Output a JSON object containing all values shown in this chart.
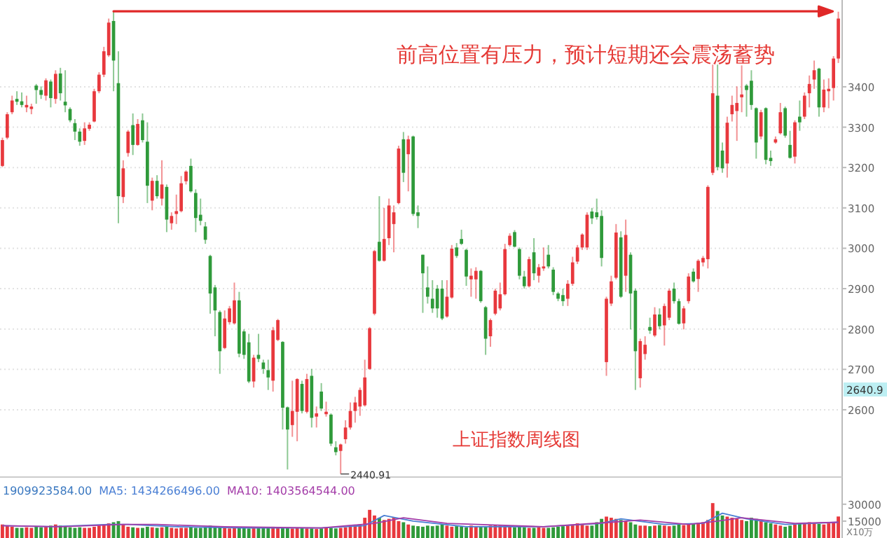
{
  "chart_data": [
    {
      "type": "candlestick",
      "categories": [
        null,
        null,
        null,
        null,
        null,
        null,
        null,
        null,
        null,
        null,
        null,
        null,
        null,
        null,
        null,
        null,
        null,
        null,
        null,
        null,
        null,
        null,
        null,
        null,
        null,
        null,
        null,
        null,
        null,
        null,
        null,
        null,
        null,
        null,
        null,
        null,
        null,
        null,
        null,
        null,
        null,
        null,
        null,
        null,
        null,
        null,
        null,
        null,
        null,
        null,
        null,
        null,
        null,
        null,
        null,
        null,
        null,
        null,
        null,
        null,
        null,
        null,
        null,
        null,
        null,
        null,
        null,
        null,
        null,
        null,
        null,
        null,
        null,
        null,
        null,
        null,
        null,
        null,
        null,
        null,
        null,
        null,
        null,
        null,
        null,
        null,
        null,
        null,
        null,
        null,
        null,
        null,
        null,
        null,
        null,
        null,
        null,
        null,
        null,
        null,
        null,
        null,
        null,
        null,
        null,
        null,
        null,
        null,
        null,
        null,
        null,
        null,
        null,
        null,
        null,
        null,
        null,
        null,
        null,
        null,
        null,
        null,
        null,
        null,
        null,
        null,
        null,
        null,
        null,
        null,
        null,
        null,
        null,
        null,
        null,
        null,
        null,
        null,
        null,
        null,
        null,
        null,
        null,
        null,
        null,
        null,
        null,
        null,
        null,
        null,
        null,
        null,
        null,
        null,
        null,
        null,
        null,
        null,
        null,
        null,
        null,
        null,
        null,
        null,
        null,
        null,
        null,
        null,
        null,
        null,
        null,
        null,
        null,
        null
      ],
      "ohlc": [
        [
          3204,
          3274,
          3201,
          3268
        ],
        [
          3274,
          3337,
          3270,
          3332
        ],
        [
          3337,
          3378,
          3332,
          3366
        ],
        [
          3370,
          3389,
          3355,
          3363
        ],
        [
          3364,
          3386,
          3349,
          3355
        ],
        [
          3349,
          3378,
          3337,
          3355
        ],
        [
          3345,
          3358,
          3332,
          3351
        ],
        [
          3403,
          3407,
          3358,
          3392
        ],
        [
          3392,
          3401,
          3370,
          3380
        ],
        [
          3378,
          3421,
          3366,
          3416
        ],
        [
          3413,
          3418,
          3349,
          3372
        ],
        [
          3370,
          3441,
          3358,
          3432
        ],
        [
          3433,
          3447,
          3366,
          3384
        ],
        [
          3363,
          3441,
          3337,
          3354
        ],
        [
          3345,
          3349,
          3312,
          3317
        ],
        [
          3310,
          3320,
          3268,
          3289
        ],
        [
          3289,
          3297,
          3254,
          3264
        ],
        [
          3266,
          3312,
          3256,
          3297
        ],
        [
          3296,
          3312,
          3291,
          3306
        ],
        [
          3314,
          3395,
          3312,
          3389
        ],
        [
          3389,
          3436,
          3384,
          3430
        ],
        [
          3430,
          3499,
          3424,
          3488
        ],
        [
          3478,
          3569,
          3474,
          3559
        ],
        [
          3563,
          3587,
          3389,
          3465
        ],
        [
          3409,
          3488,
          3062,
          3129
        ],
        [
          3127,
          3218,
          3112,
          3198
        ],
        [
          3236,
          3293,
          3227,
          3289
        ],
        [
          3305,
          3334,
          3231,
          3256
        ],
        [
          3256,
          3320,
          3254,
          3308
        ],
        [
          3317,
          3334,
          3262,
          3268
        ],
        [
          3264,
          3312,
          3112,
          3155
        ],
        [
          3118,
          3175,
          3094,
          3167
        ],
        [
          3167,
          3181,
          3123,
          3129
        ],
        [
          3123,
          3218,
          3106,
          3158
        ],
        [
          3152,
          3158,
          3040,
          3071
        ],
        [
          3062,
          3089,
          3046,
          3080
        ],
        [
          3085,
          3133,
          3060,
          3092
        ],
        [
          3092,
          3179,
          3089,
          3161
        ],
        [
          3166,
          3193,
          3158,
          3190
        ],
        [
          3204,
          3222,
          3138,
          3141
        ],
        [
          3137,
          3146,
          3040,
          3075
        ],
        [
          3083,
          3123,
          3057,
          3068
        ],
        [
          3054,
          3065,
          3011,
          3021
        ],
        [
          2981,
          2984,
          2838,
          2888
        ],
        [
          2903,
          2909,
          2782,
          2846
        ],
        [
          2842,
          2846,
          2689,
          2745
        ],
        [
          2753,
          2846,
          2750,
          2826
        ],
        [
          2817,
          2857,
          2811,
          2851
        ],
        [
          2814,
          2915,
          2811,
          2871
        ],
        [
          2871,
          2892,
          2730,
          2739
        ],
        [
          2794,
          2799,
          2726,
          2736
        ],
        [
          2767,
          2788,
          2666,
          2670
        ],
        [
          2670,
          2736,
          2655,
          2729
        ],
        [
          2736,
          2788,
          2718,
          2726
        ],
        [
          2717,
          2724,
          2689,
          2701
        ],
        [
          2698,
          2724,
          2649,
          2680
        ],
        [
          2672,
          2805,
          2645,
          2797
        ],
        [
          2773,
          2825,
          2770,
          2822
        ],
        [
          2768,
          2770,
          2551,
          2605
        ],
        [
          2606,
          2608,
          2452,
          2551
        ],
        [
          2562,
          2672,
          2533,
          2597
        ],
        [
          2595,
          2678,
          2522,
          2676
        ],
        [
          2664,
          2672,
          2591,
          2597
        ],
        [
          2595,
          2689,
          2591,
          2676
        ],
        [
          2684,
          2701,
          2556,
          2580
        ],
        [
          2583,
          2608,
          2556,
          2591
        ],
        [
          2645,
          2666,
          2597,
          2603
        ],
        [
          2589,
          2620,
          2583,
          2595
        ],
        [
          2588,
          2591,
          2510,
          2516
        ],
        [
          2507,
          2522,
          2487,
          2495
        ],
        [
          2498,
          2516,
          2440.91,
          2514
        ],
        [
          2527,
          2574,
          2516,
          2556
        ],
        [
          2556,
          2618,
          2551,
          2597
        ],
        [
          2597,
          2632,
          2568,
          2618
        ],
        [
          2608,
          2655,
          2585,
          2649
        ],
        [
          2611,
          2724,
          2608,
          2680
        ],
        [
          2701,
          2805,
          2699,
          2802
        ],
        [
          2838,
          2996,
          2834,
          2993
        ],
        [
          3016,
          3129,
          2967,
          2969
        ],
        [
          2969,
          3100,
          2967,
          3023
        ],
        [
          3025,
          3123,
          3008,
          3106
        ],
        [
          3060,
          3106,
          2990,
          3089
        ],
        [
          3112,
          3254,
          3109,
          3247
        ],
        [
          3270,
          3288,
          3164,
          3187
        ],
        [
          3233,
          3279,
          3141,
          3270
        ],
        [
          3277,
          3279,
          3080,
          3085
        ],
        [
          3089,
          3106,
          3050,
          3080
        ],
        [
          2984,
          2984,
          2840,
          2938
        ],
        [
          2903,
          2955,
          2863,
          2880
        ],
        [
          2875,
          2921,
          2840,
          2851
        ],
        [
          2900,
          2909,
          2828,
          2851
        ],
        [
          2900,
          2921,
          2822,
          2826
        ],
        [
          2831,
          2921,
          2828,
          2880
        ],
        [
          2878,
          3008,
          2875,
          2999
        ],
        [
          3002,
          3013,
          2976,
          2981
        ],
        [
          3023,
          3046,
          3008,
          3011
        ],
        [
          2996,
          2999,
          2907,
          2930
        ],
        [
          2923,
          2950,
          2880,
          2932
        ],
        [
          2923,
          2953,
          2875,
          2944
        ],
        [
          2944,
          2946,
          2865,
          2869
        ],
        [
          2854,
          2857,
          2736,
          2776
        ],
        [
          2782,
          2826,
          2756,
          2822
        ],
        [
          2838,
          2900,
          2834,
          2895
        ],
        [
          2851,
          2915,
          2846,
          2886
        ],
        [
          2886,
          3011,
          2883,
          2998
        ],
        [
          3008,
          3037,
          3004,
          3031
        ],
        [
          3040,
          3045,
          3002,
          3004
        ],
        [
          2998,
          3002,
          2923,
          2932
        ],
        [
          2930,
          2944,
          2900,
          2906
        ],
        [
          2906,
          2979,
          2903,
          2973
        ],
        [
          2990,
          3025,
          2921,
          2938
        ],
        [
          2932,
          2961,
          2915,
          2953
        ],
        [
          2950,
          3002,
          2944,
          2955
        ],
        [
          2984,
          3008,
          2950,
          2955
        ],
        [
          2947,
          2953,
          2884,
          2892
        ],
        [
          2888,
          2892,
          2869,
          2875
        ],
        [
          2884,
          2900,
          2857,
          2869
        ],
        [
          2875,
          2921,
          2857,
          2912
        ],
        [
          2912,
          2979,
          2907,
          2965
        ],
        [
          2967,
          3008,
          2961,
          3002
        ],
        [
          3002,
          3037,
          2996,
          3034
        ],
        [
          3002,
          3089,
          2996,
          3083
        ],
        [
          3091,
          3100,
          3060,
          3074
        ],
        [
          3089,
          3123,
          3071,
          3077
        ],
        [
          3080,
          3094,
          2955,
          2976
        ],
        [
          2718,
          2880,
          2684,
          2875
        ],
        [
          2863,
          2932,
          2857,
          2918
        ],
        [
          2927,
          3060,
          2923,
          3039
        ],
        [
          3027,
          3042,
          2877,
          2880
        ],
        [
          2932,
          3071,
          2892,
          3033
        ],
        [
          2984,
          2990,
          2799,
          2888
        ],
        [
          2895,
          2900,
          2649,
          2745
        ],
        [
          2678,
          2776,
          2655,
          2770
        ],
        [
          2738,
          2782,
          2724,
          2761
        ],
        [
          2805,
          2828,
          2788,
          2796
        ],
        [
          2784,
          2854,
          2780,
          2836
        ],
        [
          2836,
          2851,
          2799,
          2807
        ],
        [
          2809,
          2863,
          2759,
          2857
        ],
        [
          2828,
          2900,
          2822,
          2895
        ],
        [
          2900,
          2915,
          2863,
          2869
        ],
        [
          2869,
          2875,
          2811,
          2813
        ],
        [
          2814,
          2857,
          2799,
          2851
        ],
        [
          2869,
          2938,
          2863,
          2930
        ],
        [
          2942,
          2950,
          2915,
          2918
        ],
        [
          2924,
          2973,
          2892,
          2969
        ],
        [
          2965,
          2981,
          2955,
          2976
        ],
        [
          2973,
          3156,
          2950,
          3152
        ],
        [
          3187,
          3455,
          3181,
          3384
        ],
        [
          3378,
          3455,
          3193,
          3201
        ],
        [
          3242,
          3262,
          3187,
          3198
        ],
        [
          3210,
          3326,
          3175,
          3311
        ],
        [
          3332,
          3378,
          3314,
          3355
        ],
        [
          3340,
          3401,
          3266,
          3360
        ],
        [
          3374,
          3453,
          3337,
          3381
        ],
        [
          3403,
          3407,
          3326,
          3392
        ],
        [
          3415,
          3441,
          3343,
          3355
        ],
        [
          3347,
          3349,
          3222,
          3262
        ],
        [
          3277,
          3343,
          3270,
          3337
        ],
        [
          3347,
          3349,
          3208,
          3219
        ],
        [
          3224,
          3242,
          3204,
          3216
        ],
        [
          3262,
          3277,
          3259,
          3270
        ],
        [
          3285,
          3360,
          3282,
          3337
        ],
        [
          3347,
          3351,
          3274,
          3279
        ],
        [
          3256,
          3291,
          3222,
          3224
        ],
        [
          3227,
          3317,
          3210,
          3312
        ],
        [
          3326,
          3366,
          3291,
          3312
        ],
        [
          3326,
          3386,
          3320,
          3378
        ],
        [
          3384,
          3428,
          3349,
          3407
        ],
        [
          3418,
          3465,
          3395,
          3441
        ],
        [
          3445,
          3447,
          3326,
          3349
        ],
        [
          3349,
          3418,
          3337,
          3393
        ],
        [
          3389,
          3421,
          3347,
          3395
        ],
        [
          3397,
          3476,
          3366,
          3470
        ],
        [
          3470,
          3586,
          3459,
          3569
        ]
      ],
      "colors": [
        "#e8383d",
        "#e8383d",
        "#e8383d",
        "#2f9a3a",
        "#2f9a3a",
        "#e8383d",
        "#e8383d",
        "#2f9a3a",
        "#2f9a3a",
        "#e8383d",
        "#2f9a3a",
        "#e8383d",
        "#2f9a3a",
        "#2f9a3a",
        "#2f9a3a",
        "#2f9a3a",
        "#2f9a3a",
        "#e8383d",
        "#e8383d",
        "#e8383d",
        "#e8383d",
        "#e8383d",
        "#e8383d",
        "#2f9a3a",
        "#2f9a3a",
        "#e8383d",
        "#e8383d",
        "#2f9a3a",
        "#e8383d",
        "#2f9a3a",
        "#2f9a3a",
        "#e8383d",
        "#2f9a3a",
        "#e8383d",
        "#2f9a3a",
        "#e8383d",
        "#e8383d",
        "#e8383d",
        "#e8383d",
        "#2f9a3a",
        "#2f9a3a",
        "#2f9a3a",
        "#2f9a3a",
        "#2f9a3a",
        "#2f9a3a",
        "#2f9a3a",
        "#e8383d",
        "#e8383d",
        "#e8383d",
        "#2f9a3a",
        "#2f9a3a",
        "#2f9a3a",
        "#e8383d",
        "#2f9a3a",
        "#2f9a3a",
        "#2f9a3a",
        "#e8383d",
        "#e8383d",
        "#2f9a3a",
        "#2f9a3a",
        "#e8383d",
        "#e8383d",
        "#2f9a3a",
        "#e8383d",
        "#2f9a3a",
        "#e8383d",
        "#2f9a3a",
        "#e8383d",
        "#2f9a3a",
        "#2f9a3a",
        "#e8383d",
        "#e8383d",
        "#e8383d",
        "#e8383d",
        "#e8383d",
        "#e8383d",
        "#e8383d",
        "#e8383d",
        "#2f9a3a",
        "#e8383d",
        "#e8383d",
        "#e8383d",
        "#e8383d",
        "#2f9a3a",
        "#e8383d",
        "#2f9a3a",
        "#2f9a3a",
        "#2f9a3a",
        "#2f9a3a",
        "#2f9a3a",
        "#2f9a3a",
        "#2f9a3a",
        "#e8383d",
        "#e8383d",
        "#2f9a3a",
        "#2f9a3a",
        "#2f9a3a",
        "#e8383d",
        "#e8383d",
        "#2f9a3a",
        "#2f9a3a",
        "#e8383d",
        "#e8383d",
        "#e8383d",
        "#e8383d",
        "#e8383d",
        "#2f9a3a",
        "#2f9a3a",
        "#2f9a3a",
        "#e8383d",
        "#2f9a3a",
        "#e8383d",
        "#e8383d",
        "#2f9a3a",
        "#2f9a3a",
        "#2f9a3a",
        "#2f9a3a",
        "#e8383d",
        "#e8383d",
        "#e8383d",
        "#e8383d",
        "#e8383d",
        "#2f9a3a",
        "#2f9a3a",
        "#2f9a3a",
        "#e8383d",
        "#e8383d",
        "#e8383d",
        "#2f9a3a",
        "#e8383d",
        "#2f9a3a",
        "#2f9a3a",
        "#e8383d",
        "#e8383d",
        "#2f9a3a",
        "#e8383d",
        "#2f9a3a",
        "#e8383d",
        "#e8383d",
        "#2f9a3a",
        "#2f9a3a",
        "#e8383d",
        "#e8383d",
        "#2f9a3a",
        "#e8383d",
        "#e8383d",
        "#e8383d",
        "#e8383d",
        "#2f9a3a",
        "#2f9a3a",
        "#e8383d",
        "#e8383d",
        "#e8383d",
        "#e8383d",
        "#2f9a3a",
        "#2f9a3a",
        "#2f9a3a",
        "#e8383d",
        "#2f9a3a",
        "#2f9a3a",
        "#e8383d",
        "#e8383d",
        "#2f9a3a",
        "#2f9a3a",
        "#e8383d",
        "#2f9a3a",
        "#e8383d",
        "#e8383d",
        "#e8383d",
        "#2f9a3a",
        "#e8383d",
        "#e8383d",
        "#e8383d",
        "#e8383d"
      ],
      "ylim": [
        2435,
        3615
      ],
      "yticks": [
        2600,
        2700,
        2800,
        2900,
        3000,
        3100,
        3200,
        3300,
        3400
      ],
      "grid": "y",
      "ref_lines": [
        {
          "axis": "y",
          "value": 3587,
          "color": "#e02828"
        }
      ],
      "annotations": [
        "前高位置有压力，预计短期还会震荡蓄势",
        "上证指数周线图",
        "2440.91",
        "2640.9"
      ]
    },
    {
      "type": "bar",
      "categories": [
        null,
        null,
        null,
        null,
        null,
        null,
        null,
        null,
        null,
        null,
        null,
        null,
        null,
        null,
        null,
        null,
        null,
        null,
        null,
        null,
        null,
        null,
        null,
        null,
        null,
        null,
        null,
        null,
        null,
        null,
        null,
        null,
        null,
        null,
        null,
        null,
        null,
        null,
        null,
        null,
        null,
        null,
        null,
        null,
        null,
        null,
        null,
        null,
        null,
        null,
        null,
        null,
        null,
        null,
        null,
        null,
        null,
        null,
        null,
        null,
        null,
        null,
        null,
        null,
        null,
        null,
        null,
        null,
        null,
        null,
        null,
        null,
        null,
        null,
        null,
        null,
        null,
        null,
        null,
        null,
        null,
        null,
        null,
        null,
        null,
        null,
        null,
        null,
        null,
        null,
        null,
        null,
        null,
        null,
        null,
        null,
        null,
        null,
        null,
        null,
        null,
        null,
        null,
        null,
        null,
        null,
        null,
        null,
        null,
        null,
        null,
        null,
        null,
        null,
        null,
        null,
        null,
        null,
        null,
        null,
        null,
        null,
        null,
        null,
        null,
        null,
        null,
        null,
        null,
        null,
        null,
        null,
        null,
        null,
        null,
        null,
        null,
        null,
        null,
        null,
        null,
        null,
        null,
        null,
        null,
        null,
        null,
        null,
        null,
        null,
        null,
        null,
        null,
        null,
        null,
        null,
        null,
        null,
        null,
        null,
        null,
        null,
        null,
        null,
        null,
        null,
        null,
        null,
        null,
        null,
        null,
        null,
        null,
        null
      ],
      "series": [
        {
          "type": "bar",
          "values": [
            12000,
            11000,
            10000,
            9000,
            9000,
            9500,
            9000,
            10000,
            9500,
            10000,
            11000,
            12000,
            11000,
            10000,
            9500,
            9000,
            9500,
            9000,
            9000,
            10000,
            11000,
            12000,
            13000,
            14000,
            15000,
            12000,
            10000,
            9500,
            9000,
            9000,
            10000,
            9500,
            9000,
            9500,
            10000,
            9000,
            8500,
            9000,
            9000,
            9500,
            9000,
            9000,
            10000,
            11000,
            10000,
            9500,
            9000,
            8500,
            9000,
            9000,
            9000,
            8500,
            9000,
            9500,
            9000,
            9000,
            10000,
            9500,
            9000,
            9000,
            8500,
            9000,
            9000,
            8500,
            8500,
            8000,
            8500,
            9000,
            9000,
            8500,
            9000,
            9500,
            10000,
            11000,
            12000,
            18000,
            25000,
            20000,
            18000,
            16000,
            17000,
            18000,
            15000,
            14000,
            12000,
            11000,
            10500,
            10000,
            11000,
            10500,
            11000,
            12000,
            11000,
            10000,
            10500,
            10000,
            9500,
            11000,
            10500,
            10000,
            10000,
            11000,
            11500,
            11000,
            10500,
            10000,
            9500,
            10000,
            9500,
            9000,
            9000,
            9500,
            9000,
            9000,
            9500,
            10000,
            10500,
            11000,
            11500,
            13000,
            12000,
            11000,
            11000,
            14000,
            17000,
            19000,
            18000,
            17000,
            16000,
            15000,
            14000,
            12000,
            11000,
            11000,
            10500,
            11000,
            11500,
            11000,
            10500,
            11000,
            12000,
            11500,
            12000,
            13000,
            13500,
            14000,
            16000,
            31000,
            24000,
            20000,
            19000,
            18000,
            17000,
            16000,
            15000,
            18000,
            17000,
            15000,
            14000,
            13000,
            12000,
            11000,
            10000,
            11000,
            12000,
            12500,
            13000,
            14000,
            13000,
            12500,
            12000,
            13000,
            14000,
            19099
          ],
          "colors": [
            "#e8383d",
            "#e8383d",
            "#e8383d",
            "#2f9a3a",
            "#2f9a3a",
            "#e8383d",
            "#e8383d",
            "#2f9a3a",
            "#2f9a3a",
            "#e8383d",
            "#2f9a3a",
            "#e8383d",
            "#2f9a3a",
            "#2f9a3a",
            "#2f9a3a",
            "#2f9a3a",
            "#2f9a3a",
            "#e8383d",
            "#e8383d",
            "#e8383d",
            "#e8383d",
            "#e8383d",
            "#e8383d",
            "#2f9a3a",
            "#2f9a3a",
            "#e8383d",
            "#e8383d",
            "#2f9a3a",
            "#e8383d",
            "#2f9a3a",
            "#2f9a3a",
            "#e8383d",
            "#2f9a3a",
            "#e8383d",
            "#2f9a3a",
            "#e8383d",
            "#e8383d",
            "#e8383d",
            "#e8383d",
            "#2f9a3a",
            "#2f9a3a",
            "#2f9a3a",
            "#2f9a3a",
            "#2f9a3a",
            "#2f9a3a",
            "#2f9a3a",
            "#e8383d",
            "#e8383d",
            "#e8383d",
            "#2f9a3a",
            "#2f9a3a",
            "#2f9a3a",
            "#e8383d",
            "#2f9a3a",
            "#2f9a3a",
            "#2f9a3a",
            "#e8383d",
            "#e8383d",
            "#2f9a3a",
            "#2f9a3a",
            "#e8383d",
            "#e8383d",
            "#2f9a3a",
            "#e8383d",
            "#2f9a3a",
            "#e8383d",
            "#2f9a3a",
            "#e8383d",
            "#2f9a3a",
            "#2f9a3a",
            "#e8383d",
            "#e8383d",
            "#e8383d",
            "#e8383d",
            "#e8383d",
            "#e8383d",
            "#e8383d",
            "#e8383d",
            "#2f9a3a",
            "#e8383d",
            "#e8383d",
            "#e8383d",
            "#e8383d",
            "#2f9a3a",
            "#e8383d",
            "#2f9a3a",
            "#2f9a3a",
            "#2f9a3a",
            "#2f9a3a",
            "#2f9a3a",
            "#2f9a3a",
            "#2f9a3a",
            "#e8383d",
            "#e8383d",
            "#2f9a3a",
            "#2f9a3a",
            "#2f9a3a",
            "#e8383d",
            "#e8383d",
            "#2f9a3a",
            "#2f9a3a",
            "#e8383d",
            "#e8383d",
            "#e8383d",
            "#e8383d",
            "#e8383d",
            "#2f9a3a",
            "#2f9a3a",
            "#2f9a3a",
            "#e8383d",
            "#2f9a3a",
            "#e8383d",
            "#e8383d",
            "#2f9a3a",
            "#2f9a3a",
            "#2f9a3a",
            "#2f9a3a",
            "#e8383d",
            "#e8383d",
            "#e8383d",
            "#e8383d",
            "#e8383d",
            "#2f9a3a",
            "#2f9a3a",
            "#2f9a3a",
            "#e8383d",
            "#e8383d",
            "#e8383d",
            "#2f9a3a",
            "#e8383d",
            "#2f9a3a",
            "#2f9a3a",
            "#e8383d",
            "#e8383d",
            "#2f9a3a",
            "#e8383d",
            "#2f9a3a",
            "#e8383d",
            "#e8383d",
            "#2f9a3a",
            "#2f9a3a",
            "#e8383d",
            "#e8383d",
            "#2f9a3a",
            "#e8383d",
            "#e8383d",
            "#e8383d",
            "#e8383d",
            "#2f9a3a",
            "#2f9a3a",
            "#e8383d",
            "#e8383d",
            "#e8383d",
            "#e8383d",
            "#2f9a3a",
            "#2f9a3a",
            "#2f9a3a",
            "#e8383d",
            "#2f9a3a",
            "#2f9a3a",
            "#e8383d",
            "#e8383d",
            "#2f9a3a",
            "#2f9a3a",
            "#e8383d",
            "#2f9a3a",
            "#e8383d",
            "#e8383d",
            "#e8383d",
            "#2f9a3a",
            "#e8383d",
            "#e8383d",
            "#e8383d",
            "#e8383d"
          ]
        },
        {
          "type": "line",
          "color": "#4a7fd4",
          "values": [
            11000,
            null,
            null,
            null,
            null,
            null,
            null,
            null,
            null,
            null,
            10000,
            null,
            null,
            null,
            null,
            null,
            null,
            null,
            null,
            null,
            null,
            null,
            12000,
            null,
            null,
            null,
            12000,
            null,
            null,
            null,
            null,
            null,
            null,
            null,
            null,
            null,
            10000,
            null,
            null,
            null,
            null,
            null,
            null,
            null,
            null,
            null,
            null,
            null,
            null,
            null,
            9000,
            null,
            null,
            null,
            null,
            null,
            null,
            null,
            null,
            null,
            null,
            null,
            null,
            null,
            null,
            null,
            9000,
            null,
            null,
            null,
            null,
            null,
            null,
            null,
            null,
            11000,
            null,
            null,
            null,
            20000,
            null,
            null,
            null,
            null,
            null,
            15000,
            null,
            null,
            null,
            null,
            null,
            null,
            null,
            null,
            null,
            null,
            10000,
            null,
            null,
            null,
            null,
            null,
            null,
            null,
            null,
            null,
            null,
            null,
            null,
            null,
            null,
            null,
            10000,
            null,
            null,
            null,
            null,
            null,
            null,
            null,
            null,
            null,
            null,
            null,
            13000,
            null,
            null,
            null,
            17000,
            null,
            null,
            null,
            null,
            null,
            null,
            null,
            null,
            12000,
            null,
            null,
            null,
            null,
            null,
            null,
            null,
            13000,
            null,
            null,
            null,
            22000,
            null,
            null,
            null,
            null,
            17000,
            null,
            null,
            null,
            null,
            null,
            null,
            null,
            12000,
            null,
            null,
            null,
            null,
            null,
            null,
            null,
            null,
            null,
            null,
            14000
          ]
        },
        {
          "type": "line",
          "color": "#a33ca8",
          "values": [
            11000,
            null,
            null,
            null,
            null,
            null,
            null,
            null,
            null,
            null,
            null,
            null,
            10000,
            null,
            null,
            null,
            null,
            null,
            null,
            null,
            null,
            null,
            null,
            null,
            null,
            12000,
            null,
            null,
            null,
            null,
            null,
            null,
            12000,
            null,
            null,
            null,
            null,
            null,
            null,
            null,
            null,
            null,
            null,
            null,
            null,
            null,
            10000,
            null,
            null,
            null,
            null,
            null,
            null,
            null,
            null,
            null,
            null,
            null,
            null,
            null,
            null,
            null,
            null,
            null,
            null,
            null,
            9000,
            null,
            null,
            null,
            null,
            null,
            null,
            null,
            null,
            null,
            null,
            13000,
            null,
            null,
            null,
            null,
            null,
            18000,
            null,
            null,
            null,
            null,
            null,
            null,
            null,
            null,
            13000,
            null,
            null,
            null,
            null,
            null,
            null,
            null,
            null,
            null,
            null,
            null,
            null,
            null,
            null,
            null,
            null,
            null,
            null,
            null,
            10000,
            null,
            null,
            null,
            null,
            null,
            null,
            null,
            null,
            null,
            null,
            null,
            null,
            null,
            14000,
            null,
            null,
            null,
            null,
            null,
            16000,
            null,
            null,
            null,
            null,
            null,
            null,
            null,
            null,
            null,
            12000,
            null,
            null,
            null,
            null,
            null,
            15000,
            null,
            null,
            null,
            null,
            18000,
            null,
            null,
            null,
            null,
            null,
            null,
            null,
            null,
            null,
            null,
            13000,
            null,
            null,
            null,
            null,
            null,
            null,
            null,
            null,
            14000
          ]
        }
      ],
      "ylim": [
        0,
        33600
      ],
      "yticks": [
        15000,
        30000
      ],
      "annotations": [
        "1909923584.00",
        "MA5: 1434266496.00",
        "MA10: 1403564544.00",
        "X10万"
      ]
    }
  ]
}
